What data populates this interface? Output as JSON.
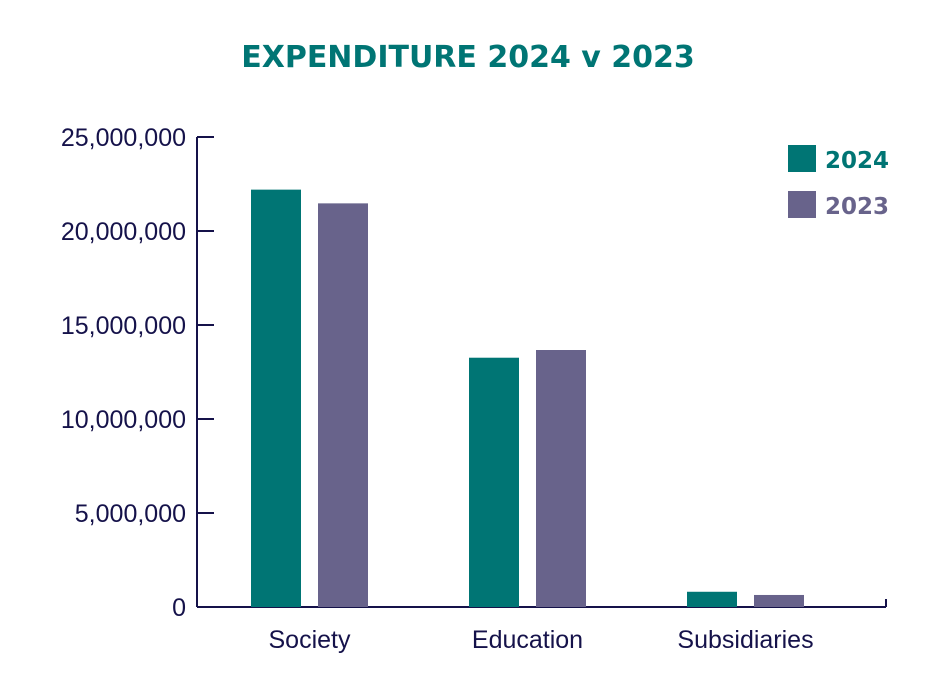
{
  "chart_data": {
    "type": "bar",
    "title": "EXPENDITURE 2024 v 2023",
    "xlabel": "",
    "ylabel": "",
    "categories": [
      "Society",
      "Education",
      "Subsidiaries"
    ],
    "series": [
      {
        "name": "2024",
        "color": "#007574",
        "values": [
          22200000,
          13260000,
          810000
        ]
      },
      {
        "name": "2023",
        "color": "#68638b",
        "values": [
          21470000,
          13670000,
          640000
        ]
      }
    ],
    "ylim": [
      0,
      25000000
    ],
    "yticks": [
      0,
      5000000,
      10000000,
      15000000,
      20000000,
      25000000
    ],
    "ytick_labels": [
      "0",
      "5,000,000",
      "10,000,000",
      "15,000,000",
      "20,000,000",
      "25,000,000"
    ],
    "grid": false,
    "legend_placement": "top-right",
    "axis_color": "#15124a"
  }
}
